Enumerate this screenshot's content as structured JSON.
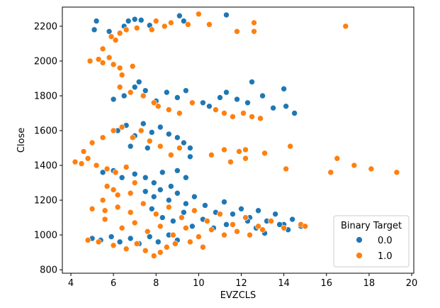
{
  "colors": {
    "series0": "#1f77b4",
    "series1": "#ff7f0e",
    "axis": "#000000",
    "legend_border": "#cccccc"
  },
  "chart_data": {
    "type": "scatter",
    "title": "",
    "xlabel": "EVZCLS",
    "ylabel": "Close",
    "xlim": [
      3.6,
      20.1
    ],
    "ylim": [
      780,
      2310
    ],
    "xticks": [
      4,
      6,
      8,
      10,
      12,
      14,
      16,
      18,
      20
    ],
    "yticks": [
      800,
      1000,
      1200,
      1400,
      1600,
      1800,
      2000,
      2200
    ],
    "grid": false,
    "legend": {
      "title": "Binary Target",
      "placement": "lower-right",
      "labels": [
        "0.0",
        "1.0"
      ]
    },
    "series": [
      {
        "name": "0.0",
        "points": [
          [
            5.1,
            2180
          ],
          [
            5.2,
            2230
          ],
          [
            5.8,
            2170
          ],
          [
            6.5,
            2200
          ],
          [
            6.7,
            2230
          ],
          [
            7.0,
            2240
          ],
          [
            7.3,
            2235
          ],
          [
            7.7,
            2205
          ],
          [
            9.1,
            2260
          ],
          [
            9.3,
            2230
          ],
          [
            11.3,
            2265
          ],
          [
            6.0,
            1780
          ],
          [
            6.5,
            1800
          ],
          [
            7.0,
            1850
          ],
          [
            7.2,
            1880
          ],
          [
            7.5,
            1830
          ],
          [
            8.0,
            1770
          ],
          [
            8.5,
            1820
          ],
          [
            9.0,
            1790
          ],
          [
            9.4,
            1830
          ],
          [
            10.2,
            1760
          ],
          [
            10.5,
            1740
          ],
          [
            11.0,
            1790
          ],
          [
            11.3,
            1820
          ],
          [
            11.8,
            1780
          ],
          [
            12.3,
            1760
          ],
          [
            12.5,
            1880
          ],
          [
            13.0,
            1800
          ],
          [
            13.5,
            1730
          ],
          [
            14.0,
            1840
          ],
          [
            14.1,
            1740
          ],
          [
            14.5,
            1700
          ],
          [
            6.2,
            1600
          ],
          [
            6.6,
            1630
          ],
          [
            7.0,
            1570
          ],
          [
            7.4,
            1640
          ],
          [
            7.8,
            1590
          ],
          [
            8.2,
            1620
          ],
          [
            8.6,
            1580
          ],
          [
            9.0,
            1560
          ],
          [
            9.3,
            1530
          ],
          [
            6.8,
            1510
          ],
          [
            7.6,
            1500
          ],
          [
            9.6,
            1450
          ],
          [
            9.6,
            1500
          ],
          [
            5.5,
            1360
          ],
          [
            6.0,
            1370
          ],
          [
            6.4,
            1330
          ],
          [
            7.0,
            1350
          ],
          [
            7.5,
            1330
          ],
          [
            7.9,
            1300
          ],
          [
            8.3,
            1360
          ],
          [
            8.7,
            1280
          ],
          [
            9.0,
            1370
          ],
          [
            9.4,
            1330
          ],
          [
            7.5,
            1250
          ],
          [
            7.9,
            1220
          ],
          [
            8.2,
            1260
          ],
          [
            8.6,
            1200
          ],
          [
            9.0,
            1240
          ],
          [
            9.4,
            1180
          ],
          [
            9.8,
            1220
          ],
          [
            10.3,
            1170
          ],
          [
            10.8,
            1130
          ],
          [
            11.2,
            1190
          ],
          [
            11.6,
            1120
          ],
          [
            12.0,
            1150
          ],
          [
            12.4,
            1100
          ],
          [
            12.8,
            1140
          ],
          [
            13.2,
            1080
          ],
          [
            13.6,
            1120
          ],
          [
            14.0,
            1060
          ],
          [
            14.4,
            1090
          ],
          [
            14.8,
            1050
          ],
          [
            7.8,
            1150
          ],
          [
            8.3,
            1100
          ],
          [
            8.8,
            1080
          ],
          [
            9.3,
            1130
          ],
          [
            9.7,
            1050
          ],
          [
            10.2,
            1090
          ],
          [
            10.7,
            1040
          ],
          [
            11.3,
            1060
          ],
          [
            11.8,
            1020
          ],
          [
            12.3,
            1080
          ],
          [
            12.7,
            1040
          ],
          [
            13.1,
            1010
          ],
          [
            13.8,
            1060
          ],
          [
            14.2,
            1030
          ],
          [
            5.0,
            980
          ],
          [
            5.4,
            970
          ],
          [
            5.9,
            990
          ],
          [
            6.3,
            960
          ],
          [
            6.8,
            980
          ],
          [
            7.2,
            950
          ],
          [
            7.7,
            990
          ],
          [
            8.1,
            960
          ],
          [
            8.6,
            1000
          ],
          [
            9.0,
            970
          ]
        ]
      },
      {
        "name": "1.0",
        "points": [
          [
            5.9,
            2140
          ],
          [
            6.1,
            2120
          ],
          [
            6.3,
            2160
          ],
          [
            6.6,
            2180
          ],
          [
            7.1,
            2190
          ],
          [
            7.8,
            2180
          ],
          [
            8.0,
            2230
          ],
          [
            8.4,
            2200
          ],
          [
            8.7,
            2220
          ],
          [
            9.5,
            2210
          ],
          [
            10.0,
            2270
          ],
          [
            10.5,
            2210
          ],
          [
            11.8,
            2170
          ],
          [
            12.6,
            2220
          ],
          [
            12.6,
            2170
          ],
          [
            16.9,
            2200
          ],
          [
            4.9,
            2000
          ],
          [
            5.3,
            2010
          ],
          [
            5.5,
            1990
          ],
          [
            5.5,
            2070
          ],
          [
            5.8,
            2020
          ],
          [
            6.0,
            1980
          ],
          [
            6.3,
            1960
          ],
          [
            6.4,
            1920
          ],
          [
            6.9,
            1970
          ],
          [
            6.3,
            1850
          ],
          [
            6.8,
            1820
          ],
          [
            7.4,
            1800
          ],
          [
            7.9,
            1760
          ],
          [
            8.1,
            1740
          ],
          [
            8.6,
            1720
          ],
          [
            9.1,
            1700
          ],
          [
            9.7,
            1760
          ],
          [
            10.8,
            1720
          ],
          [
            11.2,
            1700
          ],
          [
            11.6,
            1680
          ],
          [
            12.1,
            1700
          ],
          [
            12.5,
            1680
          ],
          [
            12.9,
            1670
          ],
          [
            4.6,
            1480
          ],
          [
            5.0,
            1530
          ],
          [
            5.5,
            1560
          ],
          [
            6.0,
            1600
          ],
          [
            6.4,
            1620
          ],
          [
            6.9,
            1560
          ],
          [
            7.3,
            1600
          ],
          [
            7.7,
            1540
          ],
          [
            8.2,
            1510
          ],
          [
            8.7,
            1460
          ],
          [
            9.1,
            1500
          ],
          [
            10.6,
            1460
          ],
          [
            11.2,
            1490
          ],
          [
            11.5,
            1420
          ],
          [
            11.9,
            1480
          ],
          [
            12.2,
            1490
          ],
          [
            12.2,
            1440
          ],
          [
            13.1,
            1470
          ],
          [
            14.3,
            1510
          ],
          [
            14.1,
            1380
          ],
          [
            16.2,
            1360
          ],
          [
            16.5,
            1440
          ],
          [
            17.3,
            1400
          ],
          [
            18.1,
            1380
          ],
          [
            19.3,
            1360
          ],
          [
            4.2,
            1420
          ],
          [
            4.5,
            1410
          ],
          [
            4.8,
            1440
          ],
          [
            5.2,
            1400
          ],
          [
            5.7,
            1380
          ],
          [
            6.1,
            1360
          ],
          [
            6.6,
            1390
          ],
          [
            7.0,
            1300
          ],
          [
            5.7,
            1280
          ],
          [
            6.0,
            1260
          ],
          [
            6.2,
            1230
          ],
          [
            6.8,
            1240
          ],
          [
            5.5,
            1200
          ],
          [
            5.0,
            1150
          ],
          [
            5.6,
            1140
          ],
          [
            6.2,
            1160
          ],
          [
            6.8,
            1130
          ],
          [
            7.4,
            1180
          ],
          [
            8.0,
            1120
          ],
          [
            8.6,
            1160
          ],
          [
            9.2,
            1100
          ],
          [
            9.8,
            1140
          ],
          [
            10.4,
            1080
          ],
          [
            11.0,
            1120
          ],
          [
            11.6,
            1060
          ],
          [
            12.2,
            1100
          ],
          [
            12.8,
            1050
          ],
          [
            13.4,
            1080
          ],
          [
            14.0,
            1040
          ],
          [
            14.8,
            1060
          ],
          [
            15.0,
            1050
          ],
          [
            5.6,
            1090
          ],
          [
            6.4,
            1040
          ],
          [
            7.0,
            1070
          ],
          [
            7.6,
            1020
          ],
          [
            8.2,
            1050
          ],
          [
            8.8,
            1000
          ],
          [
            9.4,
            1040
          ],
          [
            10.0,
            990
          ],
          [
            10.6,
            1030
          ],
          [
            11.2,
            1000
          ],
          [
            11.8,
            1020
          ],
          [
            12.4,
            1000
          ],
          [
            13.0,
            1030
          ],
          [
            4.8,
            970
          ],
          [
            5.3,
            960
          ],
          [
            6.0,
            940
          ],
          [
            6.6,
            920
          ],
          [
            7.1,
            950
          ],
          [
            7.5,
            910
          ],
          [
            7.9,
            880
          ],
          [
            8.2,
            900
          ],
          [
            8.5,
            930
          ],
          [
            8.9,
            950
          ],
          [
            9.6,
            960
          ],
          [
            10.2,
            930
          ]
        ]
      }
    ]
  }
}
